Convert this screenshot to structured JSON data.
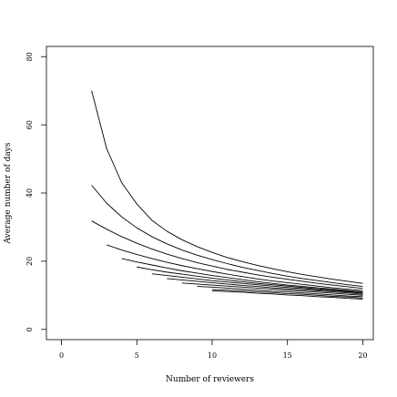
{
  "chart_data": {
    "type": "line",
    "title": "",
    "xlabel": "Number of reviewers",
    "ylabel": "Average number of days",
    "xlim": [
      -1,
      20.7
    ],
    "ylim": [
      -3,
      83
    ],
    "xticks": [
      "0",
      "5",
      "10",
      "15",
      "20"
    ],
    "yticks": [
      "0",
      "20",
      "40",
      "60",
      "80"
    ],
    "grid": false,
    "legend": "none",
    "line_color": "#000000",
    "series": [
      {
        "x": [
          2,
          3,
          4,
          5,
          6,
          7,
          8,
          9,
          10,
          11,
          12,
          13,
          14,
          15,
          16,
          17,
          18,
          19,
          20
        ],
        "values": [
          70.0,
          53.0,
          43.0,
          36.8,
          32.0,
          28.8,
          26.3,
          24.3,
          22.6,
          21.1,
          19.9,
          18.8,
          17.8,
          16.9,
          16.1,
          15.4,
          14.7,
          14.1,
          13.5
        ]
      },
      {
        "x": [
          2,
          3,
          4,
          5,
          6,
          7,
          8,
          9,
          10,
          11,
          12,
          13,
          14,
          15,
          16,
          17,
          18,
          19,
          20
        ],
        "values": [
          42.3,
          37.0,
          33.0,
          29.8,
          27.2,
          25.1,
          23.3,
          21.8,
          20.5,
          19.3,
          18.2,
          17.3,
          16.4,
          15.6,
          14.9,
          14.3,
          13.7,
          13.1,
          12.6
        ]
      },
      {
        "x": [
          2,
          3,
          4,
          5,
          6,
          7,
          8,
          9,
          10,
          11,
          12,
          13,
          14,
          15,
          16,
          17,
          18,
          19,
          20
        ],
        "values": [
          31.8,
          29.4,
          27.2,
          25.3,
          23.6,
          22.1,
          20.8,
          19.6,
          18.6,
          17.6,
          16.8,
          16.0,
          15.3,
          14.7,
          14.1,
          13.5,
          13.0,
          12.5,
          12.0
        ]
      },
      {
        "x": [
          3,
          4,
          5,
          6,
          7,
          8,
          9,
          10,
          11,
          12,
          13,
          14,
          15,
          16,
          17,
          18,
          19,
          20
        ],
        "values": [
          24.8,
          23.3,
          22.0,
          20.8,
          19.7,
          18.7,
          17.8,
          17.0,
          16.2,
          15.5,
          14.8,
          14.2,
          13.7,
          13.2,
          12.7,
          12.2,
          11.8,
          11.4
        ]
      },
      {
        "x": [
          4,
          5,
          6,
          7,
          8,
          9,
          10,
          11,
          12,
          13,
          14,
          15,
          16,
          17,
          18,
          19,
          20
        ],
        "values": [
          20.8,
          19.8,
          18.9,
          18.0,
          17.2,
          16.5,
          15.8,
          15.2,
          14.6,
          14.0,
          13.5,
          13.0,
          12.6,
          12.2,
          11.8,
          11.4,
          11.0
        ]
      },
      {
        "x": [
          5,
          6,
          7,
          8,
          9,
          10,
          11,
          12,
          13,
          14,
          15,
          16,
          17,
          18,
          19,
          20
        ],
        "values": [
          18.3,
          17.5,
          16.8,
          16.2,
          15.6,
          15.0,
          14.5,
          14.0,
          13.5,
          13.1,
          12.7,
          12.3,
          11.9,
          11.6,
          11.2,
          10.9
        ]
      },
      {
        "x": [
          6,
          7,
          8,
          9,
          10,
          11,
          12,
          13,
          14,
          15,
          16,
          17,
          18,
          19,
          20
        ],
        "values": [
          16.3,
          15.8,
          15.3,
          14.8,
          14.3,
          13.9,
          13.5,
          13.1,
          12.7,
          12.3,
          12.0,
          11.6,
          11.3,
          11.0,
          10.6
        ]
      },
      {
        "x": [
          7,
          8,
          9,
          10,
          11,
          12,
          13,
          14,
          15,
          16,
          17,
          18,
          19,
          20
        ],
        "values": [
          14.9,
          14.5,
          14.1,
          13.7,
          13.3,
          12.9,
          12.6,
          12.2,
          11.9,
          11.6,
          11.3,
          11.0,
          10.7,
          10.3
        ]
      },
      {
        "x": [
          8,
          9,
          10,
          11,
          12,
          13,
          14,
          15,
          16,
          17,
          18,
          19,
          20
        ],
        "values": [
          13.6,
          13.3,
          13.0,
          12.7,
          12.4,
          12.1,
          11.8,
          11.5,
          11.2,
          10.9,
          10.6,
          10.3,
          10.0
        ]
      },
      {
        "x": [
          9,
          10,
          11,
          12,
          13,
          14,
          15,
          16,
          17,
          18,
          19,
          20
        ],
        "values": [
          12.6,
          12.4,
          12.1,
          11.8,
          11.5,
          11.2,
          11.0,
          10.7,
          10.4,
          10.1,
          9.8,
          9.6
        ]
      },
      {
        "x": [
          10,
          11,
          12,
          13,
          14,
          15,
          16,
          17,
          18,
          19,
          20
        ],
        "values": [
          11.7,
          11.5,
          11.3,
          11.0,
          10.8,
          10.5,
          10.3,
          10.0,
          9.7,
          9.5,
          9.2
        ]
      },
      {
        "x": [
          10,
          11,
          12,
          13,
          14,
          15,
          16,
          17,
          18,
          19,
          20
        ],
        "values": [
          11.3,
          11.1,
          10.9,
          10.6,
          10.4,
          10.1,
          9.9,
          9.6,
          9.4,
          9.1,
          8.9
        ]
      }
    ]
  }
}
